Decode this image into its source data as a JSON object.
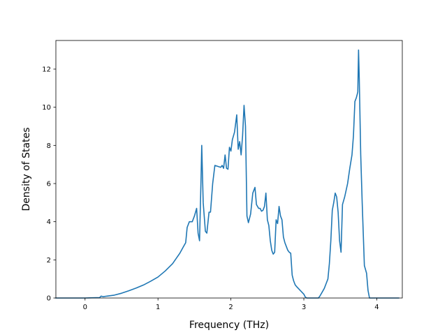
{
  "chart_data": {
    "type": "line",
    "xlabel": "Frequency (THz)",
    "ylabel": "Density of States",
    "xlim": [
      -0.4,
      4.35
    ],
    "ylim": [
      0,
      13.5
    ],
    "xticks": [
      0,
      1,
      2,
      3,
      4
    ],
    "yticks": [
      0,
      2,
      4,
      6,
      8,
      10,
      12
    ],
    "grid": false,
    "series": [
      {
        "color": "#1f77b4",
        "x": [
          -0.4,
          0.0,
          0.2,
          0.22,
          0.25,
          0.3,
          0.4,
          0.5,
          0.6,
          0.7,
          0.8,
          0.9,
          1.0,
          1.1,
          1.2,
          1.3,
          1.35,
          1.38,
          1.4,
          1.43,
          1.47,
          1.5,
          1.53,
          1.55,
          1.57,
          1.59,
          1.6,
          1.62,
          1.65,
          1.67,
          1.7,
          1.72,
          1.75,
          1.78,
          1.82,
          1.86,
          1.88,
          1.9,
          1.92,
          1.94,
          1.96,
          1.98,
          2.0,
          2.02,
          2.05,
          2.08,
          2.1,
          2.12,
          2.14,
          2.16,
          2.18,
          2.2,
          2.22,
          2.24,
          2.27,
          2.3,
          2.33,
          2.35,
          2.38,
          2.4,
          2.42,
          2.44,
          2.46,
          2.48,
          2.5,
          2.52,
          2.54,
          2.56,
          2.58,
          2.6,
          2.62,
          2.64,
          2.66,
          2.68,
          2.7,
          2.72,
          2.74,
          2.76,
          2.78,
          2.8,
          2.82,
          2.84,
          2.86,
          2.88,
          2.9,
          2.95,
          3.0,
          3.02,
          3.04,
          3.06,
          3.08,
          3.2,
          3.22,
          3.25,
          3.28,
          3.3,
          3.33,
          3.35,
          3.37,
          3.39,
          3.41,
          3.43,
          3.45,
          3.47,
          3.49,
          3.51,
          3.53,
          3.56,
          3.6,
          3.63,
          3.66,
          3.68,
          3.7,
          3.72,
          3.74,
          3.75,
          3.76,
          3.78,
          3.8,
          3.83,
          3.86,
          3.88,
          3.9,
          3.92,
          3.95,
          4.0,
          4.1,
          4.2,
          4.3
        ],
        "y": [
          0.0,
          0.0,
          0.02,
          0.1,
          0.07,
          0.1,
          0.15,
          0.25,
          0.38,
          0.52,
          0.68,
          0.88,
          1.1,
          1.42,
          1.8,
          2.35,
          2.7,
          2.9,
          3.7,
          4.0,
          4.0,
          4.3,
          4.7,
          3.4,
          3.0,
          6.2,
          8.0,
          5.0,
          3.5,
          3.4,
          4.5,
          4.5,
          6.0,
          6.95,
          6.9,
          6.85,
          6.95,
          6.8,
          7.5,
          6.8,
          6.75,
          7.9,
          7.7,
          8.3,
          8.7,
          9.6,
          7.8,
          8.2,
          7.5,
          8.5,
          10.1,
          9.0,
          4.3,
          3.95,
          4.4,
          5.5,
          5.8,
          4.9,
          4.7,
          4.7,
          4.55,
          4.6,
          4.8,
          5.5,
          4.1,
          3.8,
          3.0,
          2.5,
          2.3,
          2.4,
          4.1,
          3.9,
          4.8,
          4.3,
          4.1,
          3.2,
          2.9,
          2.7,
          2.5,
          2.4,
          2.35,
          1.2,
          0.9,
          0.7,
          0.6,
          0.4,
          0.2,
          0.05,
          0.0,
          0.0,
          0.0,
          0.0,
          0.1,
          0.3,
          0.5,
          0.7,
          1.0,
          1.8,
          3.0,
          4.6,
          5.0,
          5.5,
          5.3,
          4.5,
          3.0,
          2.4,
          4.9,
          5.3,
          6.0,
          6.8,
          7.5,
          8.5,
          10.3,
          10.5,
          10.8,
          13.0,
          11.5,
          7.5,
          5.0,
          1.7,
          1.3,
          0.4,
          0.0,
          0.0,
          0.0,
          0.0,
          0.0,
          0.0,
          0.0
        ]
      }
    ]
  }
}
